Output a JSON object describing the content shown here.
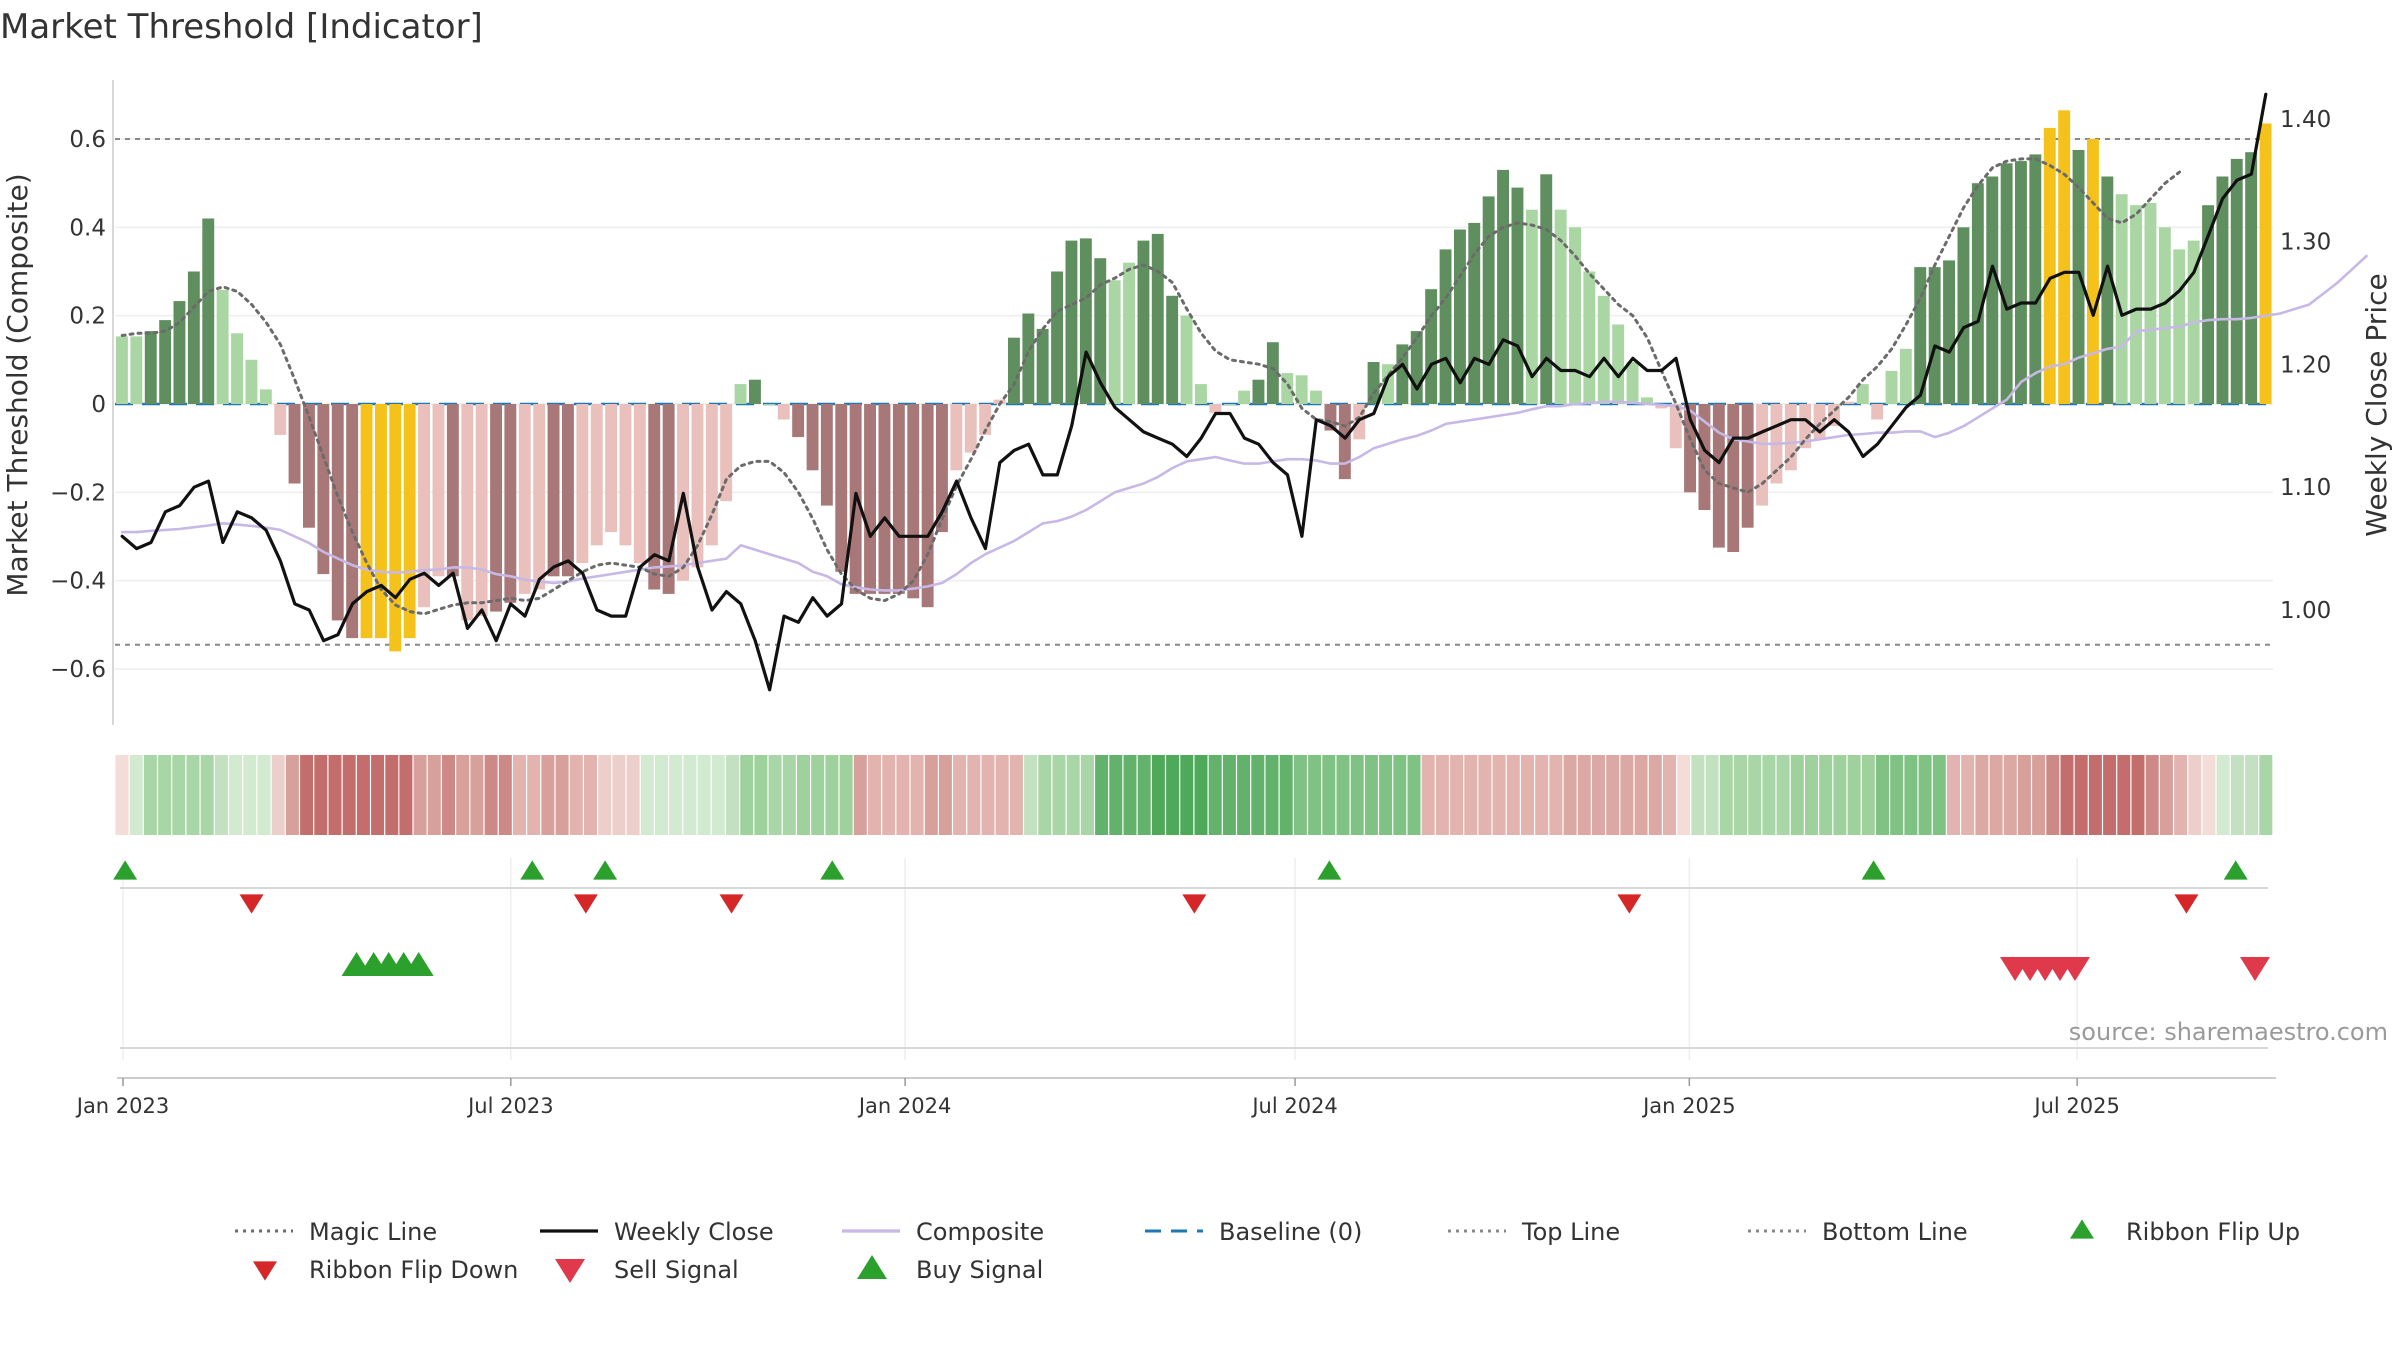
{
  "chart_data": {
    "type": "bar",
    "title": "Market Threshold [Indicator]",
    "ylabel": "Market Threshold (Composite)",
    "y2label": "Weekly Close Price",
    "ylim": [
      -0.73,
      0.73
    ],
    "y2lim": [
      0.92,
      1.42
    ],
    "yticks": [
      -0.6,
      -0.4,
      -0.2,
      0,
      0.2,
      0.4,
      0.6
    ],
    "ytick_labels": [
      "−0.6",
      "−0.4",
      "−0.2",
      "0",
      "0.2",
      "0.4",
      "0.6"
    ],
    "y2ticks": [
      1.0,
      1.1,
      1.2,
      1.3,
      1.4
    ],
    "y2tick_labels": [
      "1.00",
      "1.10",
      "1.20",
      "1.30",
      "1.40"
    ],
    "top_line": 0.6,
    "bottom_line": -0.545,
    "baseline": 0,
    "x_start": "2023-01-01",
    "x_end": "2025-09-29",
    "xticks": [
      {
        "date": "2023-01-01",
        "label": "Jan 2023"
      },
      {
        "date": "2023-07-01",
        "label": "Jul 2023"
      },
      {
        "date": "2024-01-01",
        "label": "Jan 2024"
      },
      {
        "date": "2024-07-01",
        "label": "Jul 2024"
      },
      {
        "date": "2025-01-01",
        "label": "Jan 2025"
      },
      {
        "date": "2025-07-01",
        "label": "Jul 2025"
      }
    ],
    "bar_colors": {
      "strong_up": "#5f8f5f",
      "weak_up": "#a9d6a3",
      "strong_down": "#a87878",
      "weak_down": "#e9c0bb",
      "extreme": "#f5c21b"
    },
    "threshold_bars": [
      0.153,
      0.153,
      0.165,
      0.19,
      0.233,
      0.3,
      0.42,
      0.258,
      0.16,
      0.1,
      0.033,
      -0.07,
      -0.18,
      -0.28,
      -0.385,
      -0.49,
      -0.53,
      -0.53,
      -0.53,
      -0.56,
      -0.53,
      -0.46,
      -0.39,
      -0.39,
      -0.49,
      -0.48,
      -0.47,
      -0.45,
      -0.43,
      -0.42,
      -0.39,
      -0.39,
      -0.36,
      -0.32,
      -0.29,
      -0.32,
      -0.36,
      -0.42,
      -0.43,
      -0.4,
      -0.37,
      -0.32,
      -0.22,
      0.045,
      0.055,
      0,
      -0.035,
      -0.075,
      -0.15,
      -0.23,
      -0.38,
      -0.43,
      -0.43,
      -0.43,
      -0.43,
      -0.44,
      -0.46,
      -0.29,
      -0.15,
      -0.11,
      -0.07,
      0.01,
      0.15,
      0.205,
      0.17,
      0.3,
      0.37,
      0.375,
      0.33,
      0.28,
      0.32,
      0.37,
      0.385,
      0.245,
      0.2,
      0.045,
      -0.02,
      0,
      0.03,
      0.055,
      0.14,
      0.07,
      0.065,
      0.03,
      -0.06,
      -0.17,
      -0.08,
      0.095,
      0.09,
      0.135,
      0.165,
      0.26,
      0.35,
      0.395,
      0.41,
      0.47,
      0.53,
      0.49,
      0.44,
      0.52,
      0.44,
      0.4,
      0.3,
      0.245,
      0.18,
      0.095,
      0.015,
      -0.01,
      -0.1,
      -0.2,
      -0.24,
      -0.325,
      -0.335,
      -0.28,
      -0.23,
      -0.18,
      -0.15,
      -0.1,
      -0.08,
      -0.05,
      0.005,
      0.045,
      -0.035,
      0.075,
      0.125,
      0.31,
      0.31,
      0.325,
      0.4,
      0.5,
      0.515,
      0.545,
      0.55,
      0.565,
      0.625,
      0.665,
      0.575,
      0.6,
      0.515,
      0.475,
      0.45,
      0.455,
      0.4,
      0.35,
      0.37,
      0.45,
      0.515,
      0.555,
      0.57,
      0.635
    ],
    "bar_styles": [
      "wu",
      "wu",
      "su",
      "su",
      "su",
      "su",
      "su",
      "wu",
      "wu",
      "wu",
      "wu",
      "wd",
      "sd",
      "sd",
      "sd",
      "sd",
      "sd",
      "ex",
      "ex",
      "ex",
      "ex",
      "wd",
      "wd",
      "sd",
      "wd",
      "wd",
      "sd",
      "sd",
      "wd",
      "wd",
      "sd",
      "sd",
      "wd",
      "wd",
      "wd",
      "wd",
      "wd",
      "sd",
      "sd",
      "wd",
      "wd",
      "wd",
      "wd",
      "wu",
      "su",
      "wu",
      "wd",
      "sd",
      "sd",
      "sd",
      "sd",
      "sd",
      "sd",
      "sd",
      "sd",
      "sd",
      "sd",
      "sd",
      "wd",
      "wd",
      "wd",
      "wd",
      "su",
      "su",
      "su",
      "su",
      "su",
      "su",
      "su",
      "wu",
      "wu",
      "su",
      "su",
      "su",
      "wu",
      "wu",
      "wd",
      "wu",
      "wu",
      "su",
      "su",
      "wu",
      "wu",
      "wu",
      "sd",
      "sd",
      "wd",
      "su",
      "wu",
      "su",
      "su",
      "su",
      "su",
      "su",
      "su",
      "su",
      "su",
      "su",
      "wu",
      "su",
      "wu",
      "wu",
      "wu",
      "wu",
      "wu",
      "wu",
      "wu",
      "wd",
      "wd",
      "sd",
      "sd",
      "sd",
      "sd",
      "sd",
      "wd",
      "wd",
      "wd",
      "wd",
      "wd",
      "wd",
      "wd",
      "wu",
      "wd",
      "wu",
      "wu",
      "su",
      "su",
      "su",
      "su",
      "su",
      "su",
      "su",
      "su",
      "su",
      "ex",
      "ex",
      "su",
      "ex",
      "su",
      "wu",
      "wu",
      "wu",
      "wu",
      "wu",
      "wu",
      "su",
      "su",
      "su",
      "su",
      "ex"
    ],
    "series": [
      {
        "name": "Magic Line",
        "style": "dotted",
        "color": "#6b6b6b",
        "values": [
          0.155,
          0.16,
          0.16,
          0.165,
          0.185,
          0.22,
          0.255,
          0.265,
          0.255,
          0.225,
          0.185,
          0.135,
          0.055,
          -0.03,
          -0.12,
          -0.21,
          -0.29,
          -0.36,
          -0.42,
          -0.455,
          -0.47,
          -0.475,
          -0.465,
          -0.455,
          -0.45,
          -0.45,
          -0.445,
          -0.44,
          -0.445,
          -0.44,
          -0.42,
          -0.4,
          -0.38,
          -0.365,
          -0.36,
          -0.365,
          -0.37,
          -0.385,
          -0.39,
          -0.37,
          -0.32,
          -0.25,
          -0.17,
          -0.14,
          -0.13,
          -0.13,
          -0.155,
          -0.2,
          -0.26,
          -0.33,
          -0.385,
          -0.42,
          -0.44,
          -0.445,
          -0.43,
          -0.4,
          -0.34,
          -0.26,
          -0.185,
          -0.125,
          -0.06,
          0,
          0.045,
          0.12,
          0.17,
          0.21,
          0.225,
          0.24,
          0.27,
          0.285,
          0.305,
          0.315,
          0.3,
          0.275,
          0.215,
          0.16,
          0.12,
          0.1,
          0.095,
          0.09,
          0.08,
          0.045,
          -0.01,
          -0.035,
          -0.04,
          -0.05,
          -0.03,
          0.025,
          0.065,
          0.105,
          0.15,
          0.2,
          0.24,
          0.29,
          0.34,
          0.38,
          0.4,
          0.41,
          0.405,
          0.395,
          0.37,
          0.335,
          0.295,
          0.26,
          0.225,
          0.2,
          0.15,
          0.075,
          0,
          -0.08,
          -0.15,
          -0.18,
          -0.19,
          -0.2,
          -0.18,
          -0.15,
          -0.12,
          -0.08,
          -0.045,
          -0.015,
          0.015,
          0.055,
          0.085,
          0.125,
          0.18,
          0.24,
          0.315,
          0.38,
          0.445,
          0.495,
          0.535,
          0.55,
          0.555,
          0.555,
          0.54,
          0.52,
          0.49,
          0.455,
          0.42,
          0.41,
          0.43,
          0.465,
          0.5,
          0.525
        ]
      },
      {
        "name": "Weekly Close",
        "style": "solid",
        "color": "#111111",
        "axis": "right",
        "values": [
          1.06,
          1.05,
          1.055,
          1.08,
          1.085,
          1.1,
          1.105,
          1.055,
          1.08,
          1.075,
          1.065,
          1.04,
          1.005,
          1.0,
          0.975,
          0.98,
          1.005,
          1.015,
          1.02,
          1.01,
          1.025,
          1.03,
          1.02,
          1.03,
          0.985,
          1.0,
          0.975,
          1.005,
          0.995,
          1.025,
          1.035,
          1.04,
          1.03,
          1.0,
          0.995,
          0.995,
          1.035,
          1.045,
          1.04,
          1.095,
          1.035,
          1.0,
          1.015,
          1.005,
          0.975,
          0.935,
          0.995,
          0.99,
          1.01,
          0.995,
          1.005,
          1.095,
          1.06,
          1.075,
          1.06,
          1.06,
          1.06,
          1.08,
          1.105,
          1.075,
          1.05,
          1.12,
          1.13,
          1.135,
          1.11,
          1.11,
          1.15,
          1.21,
          1.185,
          1.165,
          1.155,
          1.145,
          1.14,
          1.135,
          1.125,
          1.14,
          1.16,
          1.16,
          1.14,
          1.135,
          1.12,
          1.11,
          1.06,
          1.155,
          1.15,
          1.14,
          1.155,
          1.16,
          1.19,
          1.2,
          1.18,
          1.2,
          1.205,
          1.185,
          1.205,
          1.2,
          1.22,
          1.215,
          1.19,
          1.205,
          1.195,
          1.195,
          1.19,
          1.205,
          1.19,
          1.205,
          1.195,
          1.195,
          1.205,
          1.155,
          1.13,
          1.12,
          1.14,
          1.14,
          1.145,
          1.15,
          1.155,
          1.155,
          1.145,
          1.155,
          1.145,
          1.125,
          1.135,
          1.15,
          1.165,
          1.175,
          1.215,
          1.21,
          1.23,
          1.235,
          1.28,
          1.245,
          1.25,
          1.25,
          1.27,
          1.275,
          1.275,
          1.24,
          1.28,
          1.24,
          1.245,
          1.245,
          1.25,
          1.26,
          1.275,
          1.305,
          1.335,
          1.35,
          1.355,
          1.42
        ]
      },
      {
        "name": "Composite",
        "style": "solid",
        "color": "#c7b8e6",
        "values": [
          -0.29,
          -0.29,
          -0.287,
          -0.285,
          -0.283,
          -0.279,
          -0.275,
          -0.27,
          -0.273,
          -0.276,
          -0.28,
          -0.285,
          -0.3,
          -0.315,
          -0.335,
          -0.35,
          -0.365,
          -0.375,
          -0.38,
          -0.382,
          -0.38,
          -0.376,
          -0.375,
          -0.37,
          -0.37,
          -0.375,
          -0.385,
          -0.39,
          -0.398,
          -0.402,
          -0.405,
          -0.402,
          -0.395,
          -0.39,
          -0.385,
          -0.38,
          -0.375,
          -0.37,
          -0.368,
          -0.365,
          -0.36,
          -0.355,
          -0.35,
          -0.32,
          -0.33,
          -0.34,
          -0.35,
          -0.36,
          -0.38,
          -0.39,
          -0.408,
          -0.415,
          -0.42,
          -0.422,
          -0.422,
          -0.418,
          -0.413,
          -0.405,
          -0.385,
          -0.36,
          -0.34,
          -0.325,
          -0.31,
          -0.29,
          -0.27,
          -0.265,
          -0.255,
          -0.24,
          -0.22,
          -0.2,
          -0.19,
          -0.18,
          -0.165,
          -0.145,
          -0.13,
          -0.125,
          -0.12,
          -0.128,
          -0.135,
          -0.135,
          -0.13,
          -0.125,
          -0.125,
          -0.128,
          -0.135,
          -0.135,
          -0.12,
          -0.1,
          -0.09,
          -0.08,
          -0.072,
          -0.06,
          -0.045,
          -0.04,
          -0.035,
          -0.03,
          -0.025,
          -0.02,
          -0.012,
          -0.005,
          -0.005,
          0.0,
          0.002,
          0.005,
          0.005,
          0.003,
          0.0,
          -0.002,
          -0.005,
          -0.015,
          -0.04,
          -0.065,
          -0.08,
          -0.085,
          -0.09,
          -0.09,
          -0.088,
          -0.085,
          -0.08,
          -0.075,
          -0.07,
          -0.068,
          -0.065,
          -0.065,
          -0.062,
          -0.062,
          -0.075,
          -0.065,
          -0.05,
          -0.03,
          -0.01,
          0.01,
          0.05,
          0.07,
          0.085,
          0.09,
          0.105,
          0.115,
          0.125,
          0.13,
          0.165,
          0.168,
          0.172,
          0.175,
          0.185,
          0.19,
          0.192,
          0.192,
          0.195,
          0.2,
          0.205,
          0.215,
          0.225,
          0.25,
          0.275,
          0.305,
          0.335
        ]
      }
    ],
    "ribbon_colors": [
      "#f4dcd9",
      "#d2ead0",
      "#a8d6a6",
      "#a8d6a6",
      "#a8d6a6",
      "#a8d6a6",
      "#a8d6a6",
      "#c3e1c0",
      "#d2ead0",
      "#d2ead0",
      "#d2ead0",
      "#eccfcb",
      "#d7a09a",
      "#c36e6c",
      "#c36e6c",
      "#c36e6c",
      "#c36e6c",
      "#c36e6c",
      "#c36e6c",
      "#c36e6c",
      "#c36e6c",
      "#d7a09a",
      "#d7a09a",
      "#cd8985",
      "#d7a09a",
      "#d7a09a",
      "#cd8985",
      "#cd8985",
      "#e3b4af",
      "#e3b4af",
      "#d7a09a",
      "#d7a09a",
      "#e3b4af",
      "#e3b4af",
      "#eccfcb",
      "#eccfcb",
      "#eccfcb",
      "#d2ead0",
      "#d2ead0",
      "#d2ead0",
      "#d2ead0",
      "#d2ead0",
      "#d2ead0",
      "#c3e1c0",
      "#9fd19d",
      "#9fd19d",
      "#a8d6a6",
      "#a8d6a6",
      "#9fd19d",
      "#9fd19d",
      "#9fd19d",
      "#9fd19d",
      "#d7a09a",
      "#e3b4af",
      "#e3b4af",
      "#e3b4af",
      "#e3b4af",
      "#d7a09a",
      "#d7a09a",
      "#e3b4af",
      "#e3b4af",
      "#e3b4af",
      "#e3b4af",
      "#e3b4af",
      "#c3e1c0",
      "#a8d6a6",
      "#a8d6a6",
      "#a8d6a6",
      "#a8d6a6",
      "#62b26b",
      "#62b26b",
      "#62b26b",
      "#62b26b",
      "#4ea95b",
      "#4ea95b",
      "#4ea95b",
      "#4ea95b",
      "#62b26b",
      "#62b26b",
      "#62b26b",
      "#62b26b",
      "#62b26b",
      "#62b26b",
      "#7fc284",
      "#7fc284",
      "#7fc284",
      "#7fc284",
      "#7fc284",
      "#7fc284",
      "#7fc284",
      "#7fc284",
      "#7fc284",
      "#e3b4af",
      "#e3b4af",
      "#e3b4af",
      "#e3b4af",
      "#e3b4af",
      "#e3b4af",
      "#e3b4af",
      "#e3b4af",
      "#e3b4af",
      "#e3b4af",
      "#dca8a4",
      "#dca8a4",
      "#dca8a4",
      "#dca8a4",
      "#dca8a4",
      "#dca8a4",
      "#dca8a4",
      "#e3b4af",
      "#f4dcd9",
      "#c3e1c0",
      "#c3e1c0",
      "#a8d6a6",
      "#a8d6a6",
      "#a8d6a6",
      "#a8d6a6",
      "#a8d6a6",
      "#9fd19d",
      "#9fd19d",
      "#9fd19d",
      "#9fd19d",
      "#9fd19d",
      "#9fd19d",
      "#7fc284",
      "#7fc284",
      "#7fc284",
      "#7fc284",
      "#7fc284",
      "#e3b4af",
      "#e3b4af",
      "#dca8a4",
      "#dca8a4",
      "#dca8a4",
      "#d7a09a",
      "#d7a09a",
      "#cd8985",
      "#c36e6c",
      "#c36e6c",
      "#c36e6c",
      "#c36e6c",
      "#c36e6c",
      "#c36e6c",
      "#cd8985",
      "#d7a09a",
      "#e3b4af",
      "#eccfcb",
      "#f4dcd9",
      "#d2ead0",
      "#c3e1c0",
      "#c3e1c0",
      "#a8d6a6"
    ],
    "ribbon_flip_up": [
      "2023-01-02",
      "2023-07-11",
      "2023-08-14",
      "2023-11-28",
      "2024-07-17",
      "2025-03-28",
      "2025-09-13"
    ],
    "ribbon_flip_down": [
      "2023-03-02",
      "2023-08-05",
      "2023-10-12",
      "2024-05-15",
      "2024-12-04",
      "2025-08-21"
    ],
    "buy_signals": [
      "2023-04-20",
      "2023-04-28",
      "2023-05-05",
      "2023-05-12",
      "2023-05-19"
    ],
    "sell_signals": [
      "2025-06-02",
      "2025-06-09",
      "2025-06-16",
      "2025-06-23",
      "2025-06-30",
      "2025-09-22"
    ],
    "legend_position": "bottom",
    "legend": [
      {
        "label": "Magic Line",
        "symbol": "dotted-line",
        "color": "#6b6b6b"
      },
      {
        "label": "Weekly Close",
        "symbol": "solid-line",
        "color": "#111111"
      },
      {
        "label": "Composite",
        "symbol": "solid-line",
        "color": "#c7b8e6"
      },
      {
        "label": "Baseline (0)",
        "symbol": "dashed-line",
        "color": "#1f77b4"
      },
      {
        "label": "Top Line",
        "symbol": "dotted-line",
        "color": "#888888"
      },
      {
        "label": "Bottom Line",
        "symbol": "dotted-line",
        "color": "#888888"
      },
      {
        "label": "Ribbon Flip Up",
        "symbol": "triangle-up",
        "color": "#2ca02c"
      },
      {
        "label": "Ribbon Flip Down",
        "symbol": "triangle-down",
        "color": "#d62728"
      },
      {
        "label": "Sell Signal",
        "symbol": "triangle-down",
        "color": "#e0394b"
      },
      {
        "label": "Buy Signal",
        "symbol": "triangle-up",
        "color": "#2ca02c"
      }
    ],
    "grid": true
  },
  "source_text": "source: sharemaestro.com",
  "colors": {
    "baseline": "#1f77b4",
    "top_bottom_line": "#888888",
    "flip_up": "#2ca02c",
    "flip_down": "#d62728",
    "sell": "#e0394b",
    "buy": "#2ca02c",
    "grid": "#eeeeee",
    "axis": "#cccccc"
  }
}
